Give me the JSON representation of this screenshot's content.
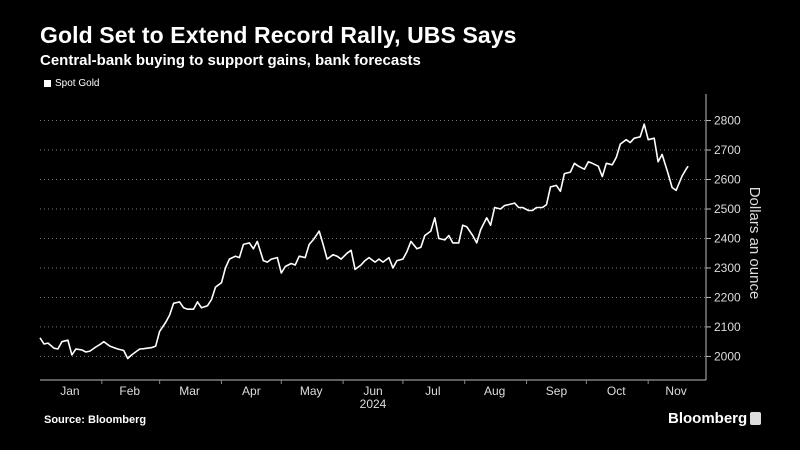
{
  "title": "Gold Set to Extend Record Rally, UBS Says",
  "subtitle": "Central-bank buying to support gains, bank forecasts",
  "source": "Source: Bloomberg",
  "brand": "Bloomberg",
  "chart_data": {
    "type": "line",
    "series": [
      {
        "name": "Spot Gold",
        "color": "#ffffff",
        "points": [
          [
            "2024-01-01",
            2063
          ],
          [
            "2024-01-03",
            2042
          ],
          [
            "2024-01-05",
            2045
          ],
          [
            "2024-01-08",
            2028
          ],
          [
            "2024-01-10",
            2025
          ],
          [
            "2024-01-12",
            2050
          ],
          [
            "2024-01-15",
            2055
          ],
          [
            "2024-01-17",
            2005
          ],
          [
            "2024-01-19",
            2025
          ],
          [
            "2024-01-22",
            2022
          ],
          [
            "2024-01-24",
            2015
          ],
          [
            "2024-01-26",
            2018
          ],
          [
            "2024-01-29",
            2032
          ],
          [
            "2024-01-31",
            2040
          ],
          [
            "2024-02-02",
            2050
          ],
          [
            "2024-02-05",
            2035
          ],
          [
            "2024-02-07",
            2030
          ],
          [
            "2024-02-09",
            2025
          ],
          [
            "2024-02-12",
            2020
          ],
          [
            "2024-02-14",
            1993
          ],
          [
            "2024-02-16",
            2005
          ],
          [
            "2024-02-20",
            2025
          ],
          [
            "2024-02-22",
            2026
          ],
          [
            "2024-02-26",
            2030
          ],
          [
            "2024-02-28",
            2035
          ],
          [
            "2024-03-01",
            2085
          ],
          [
            "2024-03-04",
            2115
          ],
          [
            "2024-03-06",
            2140
          ],
          [
            "2024-03-08",
            2180
          ],
          [
            "2024-03-11",
            2185
          ],
          [
            "2024-03-13",
            2165
          ],
          [
            "2024-03-15",
            2160
          ],
          [
            "2024-03-18",
            2160
          ],
          [
            "2024-03-20",
            2185
          ],
          [
            "2024-03-22",
            2165
          ],
          [
            "2024-03-25",
            2172
          ],
          [
            "2024-03-27",
            2193
          ],
          [
            "2024-03-29",
            2235
          ],
          [
            "2024-04-01",
            2250
          ],
          [
            "2024-04-03",
            2300
          ],
          [
            "2024-04-05",
            2330
          ],
          [
            "2024-04-08",
            2340
          ],
          [
            "2024-04-10",
            2335
          ],
          [
            "2024-04-12",
            2380
          ],
          [
            "2024-04-15",
            2385
          ],
          [
            "2024-04-17",
            2365
          ],
          [
            "2024-04-19",
            2390
          ],
          [
            "2024-04-22",
            2325
          ],
          [
            "2024-04-24",
            2320
          ],
          [
            "2024-04-26",
            2330
          ],
          [
            "2024-04-29",
            2335
          ],
          [
            "2024-05-01",
            2283
          ],
          [
            "2024-05-03",
            2305
          ],
          [
            "2024-05-06",
            2315
          ],
          [
            "2024-05-08",
            2310
          ],
          [
            "2024-05-10",
            2340
          ],
          [
            "2024-05-13",
            2335
          ],
          [
            "2024-05-15",
            2380
          ],
          [
            "2024-05-17",
            2395
          ],
          [
            "2024-05-20",
            2425
          ],
          [
            "2024-05-22",
            2380
          ],
          [
            "2024-05-24",
            2330
          ],
          [
            "2024-05-27",
            2345
          ],
          [
            "2024-05-29",
            2340
          ],
          [
            "2024-05-31",
            2330
          ],
          [
            "2024-06-03",
            2350
          ],
          [
            "2024-06-05",
            2360
          ],
          [
            "2024-06-07",
            2295
          ],
          [
            "2024-06-10",
            2310
          ],
          [
            "2024-06-12",
            2325
          ],
          [
            "2024-06-14",
            2335
          ],
          [
            "2024-06-17",
            2320
          ],
          [
            "2024-06-19",
            2330
          ],
          [
            "2024-06-21",
            2320
          ],
          [
            "2024-06-24",
            2335
          ],
          [
            "2024-06-26",
            2300
          ],
          [
            "2024-06-28",
            2325
          ],
          [
            "2024-07-01",
            2330
          ],
          [
            "2024-07-03",
            2355
          ],
          [
            "2024-07-05",
            2390
          ],
          [
            "2024-07-08",
            2365
          ],
          [
            "2024-07-10",
            2370
          ],
          [
            "2024-07-12",
            2410
          ],
          [
            "2024-07-15",
            2425
          ],
          [
            "2024-07-17",
            2470
          ],
          [
            "2024-07-19",
            2400
          ],
          [
            "2024-07-22",
            2395
          ],
          [
            "2024-07-24",
            2410
          ],
          [
            "2024-07-26",
            2385
          ],
          [
            "2024-07-29",
            2385
          ],
          [
            "2024-07-31",
            2445
          ],
          [
            "2024-08-02",
            2440
          ],
          [
            "2024-08-05",
            2410
          ],
          [
            "2024-08-07",
            2385
          ],
          [
            "2024-08-09",
            2430
          ],
          [
            "2024-08-12",
            2470
          ],
          [
            "2024-08-14",
            2445
          ],
          [
            "2024-08-16",
            2505
          ],
          [
            "2024-08-19",
            2500
          ],
          [
            "2024-08-21",
            2512
          ],
          [
            "2024-08-23",
            2515
          ],
          [
            "2024-08-26",
            2520
          ],
          [
            "2024-08-28",
            2505
          ],
          [
            "2024-08-30",
            2505
          ],
          [
            "2024-09-02",
            2495
          ],
          [
            "2024-09-04",
            2495
          ],
          [
            "2024-09-06",
            2505
          ],
          [
            "2024-09-09",
            2505
          ],
          [
            "2024-09-11",
            2515
          ],
          [
            "2024-09-13",
            2575
          ],
          [
            "2024-09-16",
            2580
          ],
          [
            "2024-09-18",
            2560
          ],
          [
            "2024-09-20",
            2620
          ],
          [
            "2024-09-23",
            2625
          ],
          [
            "2024-09-25",
            2655
          ],
          [
            "2024-09-27",
            2645
          ],
          [
            "2024-09-30",
            2635
          ],
          [
            "2024-10-02",
            2660
          ],
          [
            "2024-10-04",
            2655
          ],
          [
            "2024-10-07",
            2645
          ],
          [
            "2024-10-09",
            2610
          ],
          [
            "2024-10-11",
            2655
          ],
          [
            "2024-10-14",
            2650
          ],
          [
            "2024-10-16",
            2675
          ],
          [
            "2024-10-18",
            2720
          ],
          [
            "2024-10-21",
            2735
          ],
          [
            "2024-10-23",
            2725
          ],
          [
            "2024-10-25",
            2740
          ],
          [
            "2024-10-28",
            2745
          ],
          [
            "2024-10-30",
            2788
          ],
          [
            "2024-11-01",
            2735
          ],
          [
            "2024-11-04",
            2740
          ],
          [
            "2024-11-06",
            2660
          ],
          [
            "2024-11-08",
            2685
          ],
          [
            "2024-11-11",
            2620
          ],
          [
            "2024-11-13",
            2573
          ],
          [
            "2024-11-15",
            2563
          ],
          [
            "2024-11-18",
            2612
          ],
          [
            "2024-11-20",
            2635
          ],
          [
            "2024-11-21",
            2645
          ]
        ]
      }
    ],
    "xlabel": "",
    "year_label": "2024",
    "x_ticks": [
      {
        "label": "Jan",
        "date": "2024-01-16"
      },
      {
        "label": "Feb",
        "date": "2024-02-15"
      },
      {
        "label": "Mar",
        "date": "2024-03-16"
      },
      {
        "label": "Apr",
        "date": "2024-04-16"
      },
      {
        "label": "May",
        "date": "2024-05-16"
      },
      {
        "label": "Jun",
        "date": "2024-06-16"
      },
      {
        "label": "Jul",
        "date": "2024-07-16"
      },
      {
        "label": "Aug",
        "date": "2024-08-16"
      },
      {
        "label": "Sep",
        "date": "2024-09-16"
      },
      {
        "label": "Oct",
        "date": "2024-10-16"
      },
      {
        "label": "Nov",
        "date": "2024-11-15"
      }
    ],
    "xlim": [
      "2024-01-01",
      "2024-11-30"
    ],
    "ylabel": "Dollars an ounce",
    "ylim": [
      1920,
      2890
    ],
    "y_ticks": [
      2000,
      2100,
      2200,
      2300,
      2400,
      2500,
      2600,
      2700,
      2800
    ],
    "grid": "horizontal-dotted",
    "legend_position": "top-left"
  }
}
